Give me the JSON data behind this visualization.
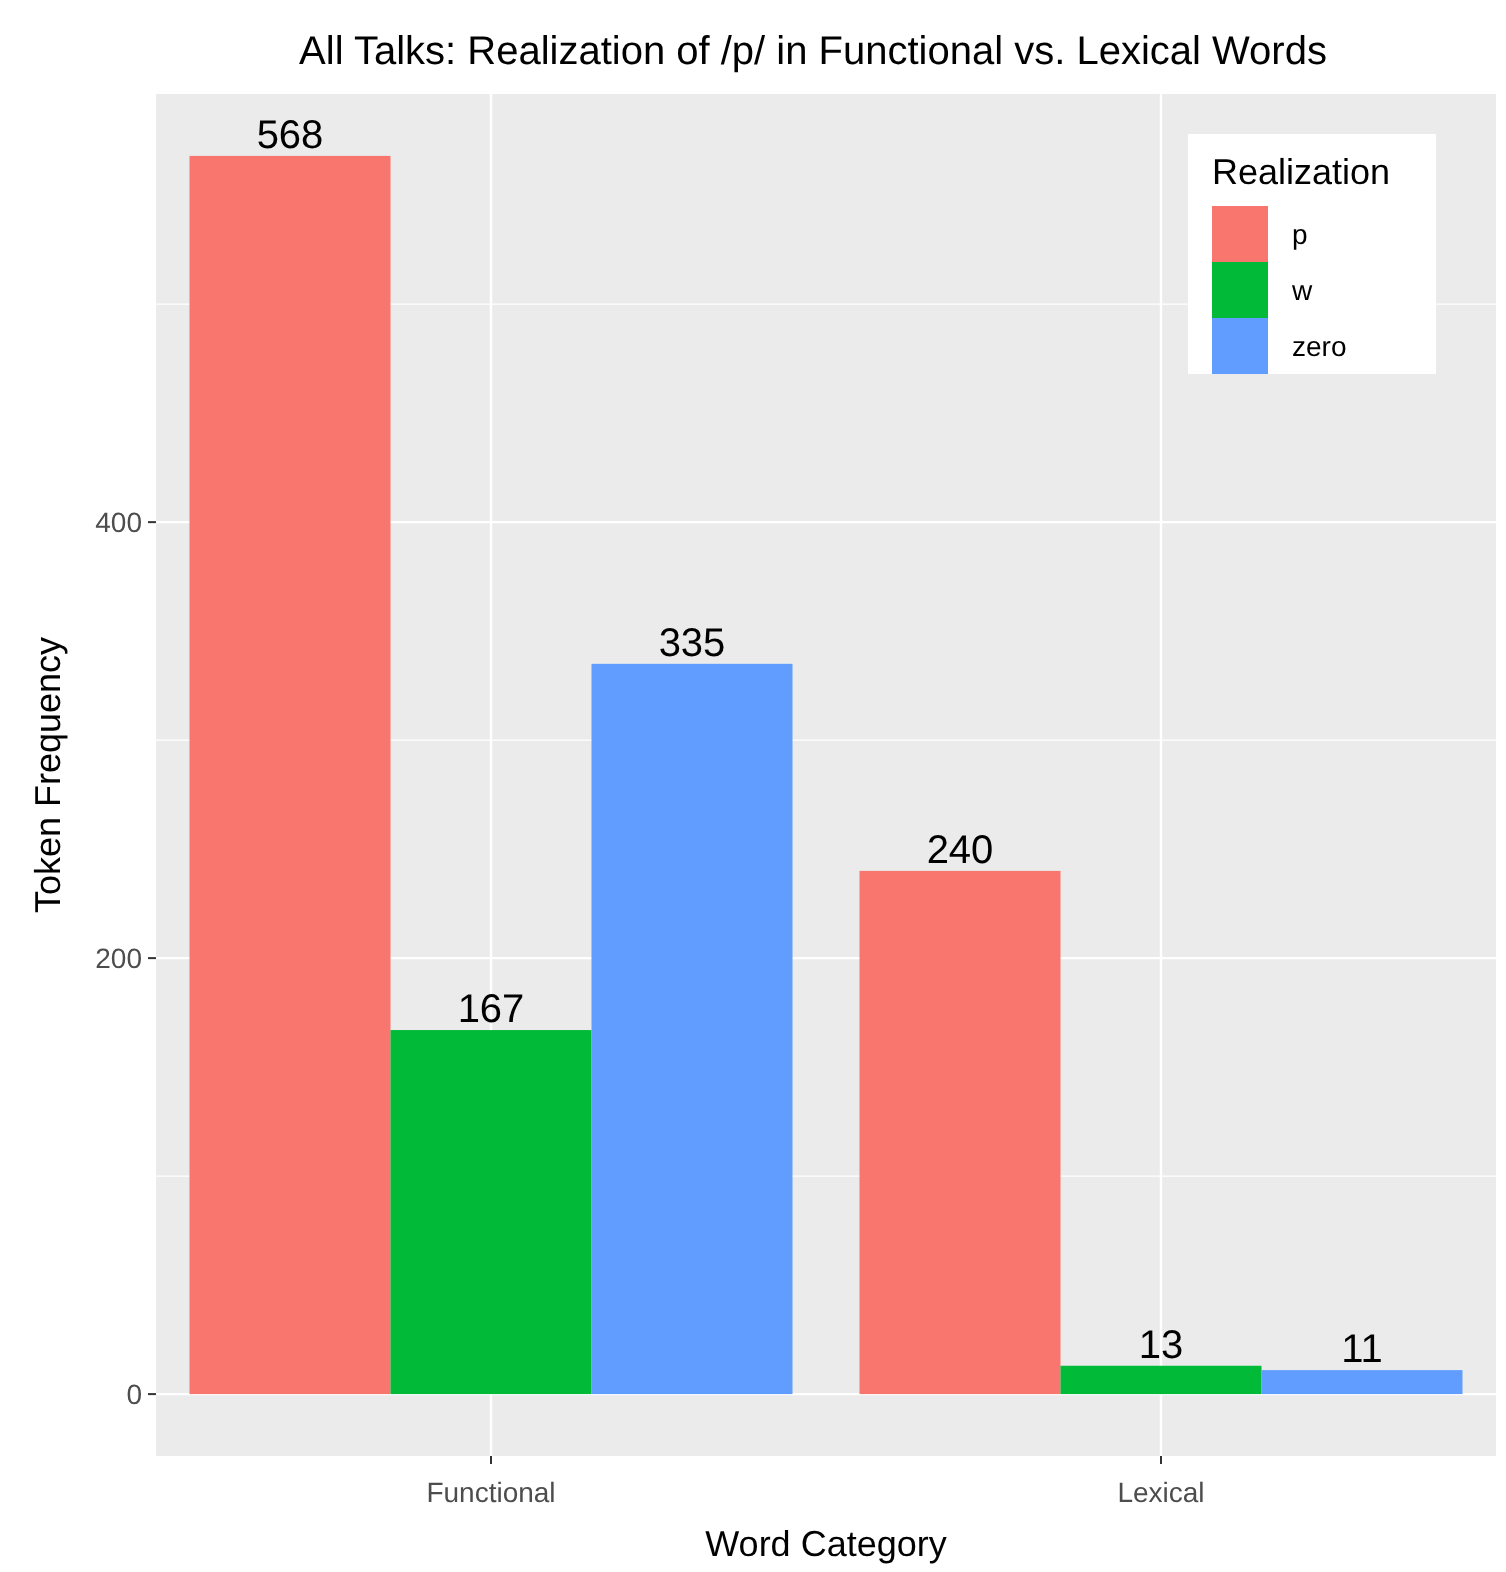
{
  "chart_data": {
    "type": "bar",
    "title": "All Talks: Realization of /p/ in Functional vs. Lexical Words",
    "xlabel": "Word Category",
    "ylabel": "Token Frequency",
    "legend_title": "Realization",
    "categories": [
      "Functional",
      "Lexical"
    ],
    "series": [
      {
        "name": "p",
        "color": "#f8766d",
        "values": [
          568,
          240
        ]
      },
      {
        "name": "w",
        "color": "#00ba38",
        "values": [
          167,
          13
        ]
      },
      {
        "name": "zero",
        "color": "#619cff",
        "values": [
          335,
          11
        ]
      }
    ],
    "ylim": [
      -28.4,
      596.4
    ],
    "yticks": [
      0,
      {
        "value": 100,
        "label": null
      },
      200,
      {
        "value": 300,
        "label": null
      },
      400,
      {
        "value": 500,
        "label": null
      }
    ],
    "grid": true,
    "legend": "top right",
    "data_labels": true
  }
}
